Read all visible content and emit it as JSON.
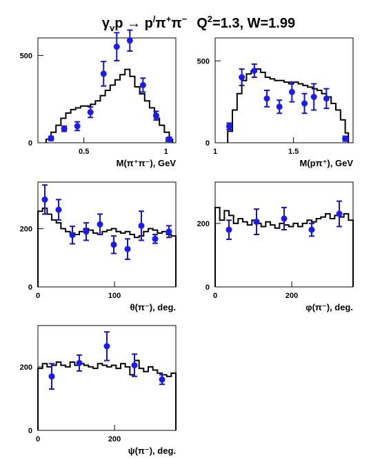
{
  "title": "γ_v p → p'π⁺π⁻   Q²=1.3, W=1.99",
  "chart_data": [
    {
      "type": "histogram-with-points",
      "xlabel": "M(π⁺π⁻), GeV",
      "xlim": [
        0.22,
        1.06
      ],
      "ylim": [
        0,
        600
      ],
      "xticks": [
        {
          "v": 0.5,
          "label": "0.5"
        },
        {
          "v": 1.0,
          "label": "1"
        }
      ],
      "yticks": [
        {
          "v": 0,
          "label": "0"
        },
        {
          "v": 500,
          "label": "500"
        }
      ],
      "hist_edges": [
        0.27,
        0.3,
        0.33,
        0.36,
        0.39,
        0.42,
        0.45,
        0.48,
        0.51,
        0.54,
        0.57,
        0.6,
        0.63,
        0.66,
        0.69,
        0.72,
        0.75,
        0.78,
        0.81,
        0.84,
        0.87,
        0.9,
        0.93,
        0.96,
        0.99,
        1.02,
        1.04
      ],
      "hist_values": [
        20,
        60,
        100,
        140,
        170,
        190,
        200,
        210,
        210,
        220,
        240,
        270,
        300,
        330,
        360,
        390,
        420,
        380,
        320,
        280,
        240,
        200,
        140,
        100,
        60,
        20
      ],
      "points": [
        {
          "x": 0.3,
          "y": 25,
          "err": 12
        },
        {
          "x": 0.38,
          "y": 80,
          "err": 15
        },
        {
          "x": 0.46,
          "y": 95,
          "err": 25
        },
        {
          "x": 0.54,
          "y": 175,
          "err": 30
        },
        {
          "x": 0.62,
          "y": 395,
          "err": 70
        },
        {
          "x": 0.7,
          "y": 550,
          "err": 80
        },
        {
          "x": 0.78,
          "y": 585,
          "err": 60
        },
        {
          "x": 0.86,
          "y": 330,
          "err": 40
        },
        {
          "x": 0.94,
          "y": 155,
          "err": 25
        },
        {
          "x": 1.02,
          "y": 20,
          "err": 12
        }
      ]
    },
    {
      "type": "histogram-with-points",
      "xlabel": "M(pπ⁺), GeV",
      "xlim": [
        1.0,
        1.88
      ],
      "ylim": [
        0,
        640
      ],
      "xticks": [
        {
          "v": 1.0,
          "label": "1"
        },
        {
          "v": 1.5,
          "label": "1.5"
        }
      ],
      "yticks": [
        {
          "v": 0,
          "label": "0"
        },
        {
          "v": 500,
          "label": "500"
        }
      ],
      "hist_edges": [
        1.08,
        1.11,
        1.14,
        1.17,
        1.2,
        1.23,
        1.26,
        1.29,
        1.32,
        1.35,
        1.38,
        1.41,
        1.44,
        1.47,
        1.5,
        1.53,
        1.56,
        1.59,
        1.62,
        1.65,
        1.68,
        1.71,
        1.74,
        1.77,
        1.8,
        1.83,
        1.85
      ],
      "hist_values": [
        70,
        200,
        300,
        380,
        420,
        440,
        450,
        430,
        400,
        390,
        380,
        380,
        370,
        360,
        370,
        360,
        350,
        340,
        330,
        320,
        300,
        280,
        240,
        200,
        140,
        60
      ],
      "points": [
        {
          "x": 1.09,
          "y": 100,
          "err": 20
        },
        {
          "x": 1.17,
          "y": 400,
          "err": 50
        },
        {
          "x": 1.25,
          "y": 440,
          "err": 40
        },
        {
          "x": 1.33,
          "y": 270,
          "err": 50
        },
        {
          "x": 1.41,
          "y": 220,
          "err": 40
        },
        {
          "x": 1.49,
          "y": 310,
          "err": 60
        },
        {
          "x": 1.57,
          "y": 240,
          "err": 60
        },
        {
          "x": 1.63,
          "y": 280,
          "err": 80
        },
        {
          "x": 1.71,
          "y": 270,
          "err": 60
        },
        {
          "x": 1.83,
          "y": 25,
          "err": 15
        }
      ]
    },
    {
      "type": "histogram-with-points",
      "xlabel": "θ(π⁻), deg.",
      "xlim": [
        0,
        180
      ],
      "ylim": [
        0,
        360
      ],
      "xticks": [
        {
          "v": 0,
          "label": "0"
        },
        {
          "v": 100,
          "label": "100"
        }
      ],
      "yticks": [
        {
          "v": 0,
          "label": "0"
        },
        {
          "v": 200,
          "label": "200"
        }
      ],
      "hist_edges": [
        0,
        6,
        12,
        18,
        24,
        30,
        36,
        42,
        48,
        54,
        60,
        66,
        72,
        78,
        84,
        90,
        96,
        102,
        108,
        114,
        120,
        126,
        132,
        138,
        144,
        150,
        156,
        162,
        168,
        174,
        180
      ],
      "hist_values": [
        260,
        270,
        250,
        230,
        220,
        200,
        190,
        185,
        180,
        190,
        200,
        195,
        185,
        180,
        190,
        195,
        200,
        190,
        185,
        190,
        180,
        170,
        175,
        190,
        200,
        195,
        185,
        190,
        180,
        175
      ],
      "points": [
        {
          "x": 9,
          "y": 300,
          "err": 50
        },
        {
          "x": 27,
          "y": 265,
          "err": 35
        },
        {
          "x": 45,
          "y": 178,
          "err": 30
        },
        {
          "x": 63,
          "y": 190,
          "err": 30
        },
        {
          "x": 81,
          "y": 215,
          "err": 35
        },
        {
          "x": 99,
          "y": 145,
          "err": 30
        },
        {
          "x": 117,
          "y": 130,
          "err": 35
        },
        {
          "x": 135,
          "y": 210,
          "err": 50
        },
        {
          "x": 153,
          "y": 165,
          "err": 15
        },
        {
          "x": 171,
          "y": 190,
          "err": 20
        }
      ]
    },
    {
      "type": "histogram-with-points",
      "xlabel": "φ(π⁻), deg.",
      "xlim": [
        0,
        360
      ],
      "ylim": [
        0,
        330
      ],
      "xticks": [
        {
          "v": 0,
          "label": "0"
        },
        {
          "v": 200,
          "label": "200"
        }
      ],
      "yticks": [
        {
          "v": 0,
          "label": "0"
        },
        {
          "v": 200,
          "label": "200"
        }
      ],
      "hist_edges": [
        0,
        12,
        24,
        36,
        48,
        60,
        72,
        84,
        96,
        108,
        120,
        132,
        144,
        156,
        168,
        180,
        192,
        204,
        216,
        228,
        240,
        252,
        264,
        276,
        288,
        300,
        312,
        324,
        336,
        348,
        360
      ],
      "hist_values": [
        250,
        210,
        240,
        225,
        200,
        215,
        205,
        195,
        210,
        200,
        190,
        205,
        195,
        185,
        200,
        195,
        190,
        200,
        190,
        200,
        210,
        205,
        215,
        220,
        230,
        215,
        225,
        220,
        230,
        210
      ],
      "points": [
        {
          "x": 36,
          "y": 180,
          "err": 30
        },
        {
          "x": 108,
          "y": 205,
          "err": 40
        },
        {
          "x": 180,
          "y": 215,
          "err": 35
        },
        {
          "x": 252,
          "y": 180,
          "err": 20
        },
        {
          "x": 324,
          "y": 230,
          "err": 40
        }
      ]
    },
    {
      "type": "histogram-with-points",
      "xlabel": "ψ(π⁻), deg.",
      "xlim": [
        0,
        360
      ],
      "ylim": [
        0,
        330
      ],
      "xticks": [
        {
          "v": 0,
          "label": "0"
        },
        {
          "v": 200,
          "label": "200"
        }
      ],
      "yticks": [
        {
          "v": 0,
          "label": "0"
        },
        {
          "v": 200,
          "label": "200"
        }
      ],
      "hist_edges": [
        0,
        12,
        24,
        36,
        48,
        60,
        72,
        84,
        96,
        108,
        120,
        132,
        144,
        156,
        168,
        180,
        192,
        204,
        216,
        228,
        240,
        252,
        264,
        276,
        288,
        300,
        312,
        324,
        336,
        348,
        360
      ],
      "hist_values": [
        195,
        210,
        200,
        205,
        215,
        205,
        200,
        215,
        205,
        210,
        205,
        200,
        195,
        210,
        205,
        200,
        205,
        195,
        210,
        200,
        175,
        220,
        195,
        185,
        200,
        190,
        180,
        175,
        170,
        180
      ],
      "points": [
        {
          "x": 36,
          "y": 170,
          "err": 40
        },
        {
          "x": 108,
          "y": 212,
          "err": 25
        },
        {
          "x": 180,
          "y": 265,
          "err": 45
        },
        {
          "x": 252,
          "y": 205,
          "err": 35
        },
        {
          "x": 324,
          "y": 160,
          "err": 15
        }
      ]
    }
  ]
}
